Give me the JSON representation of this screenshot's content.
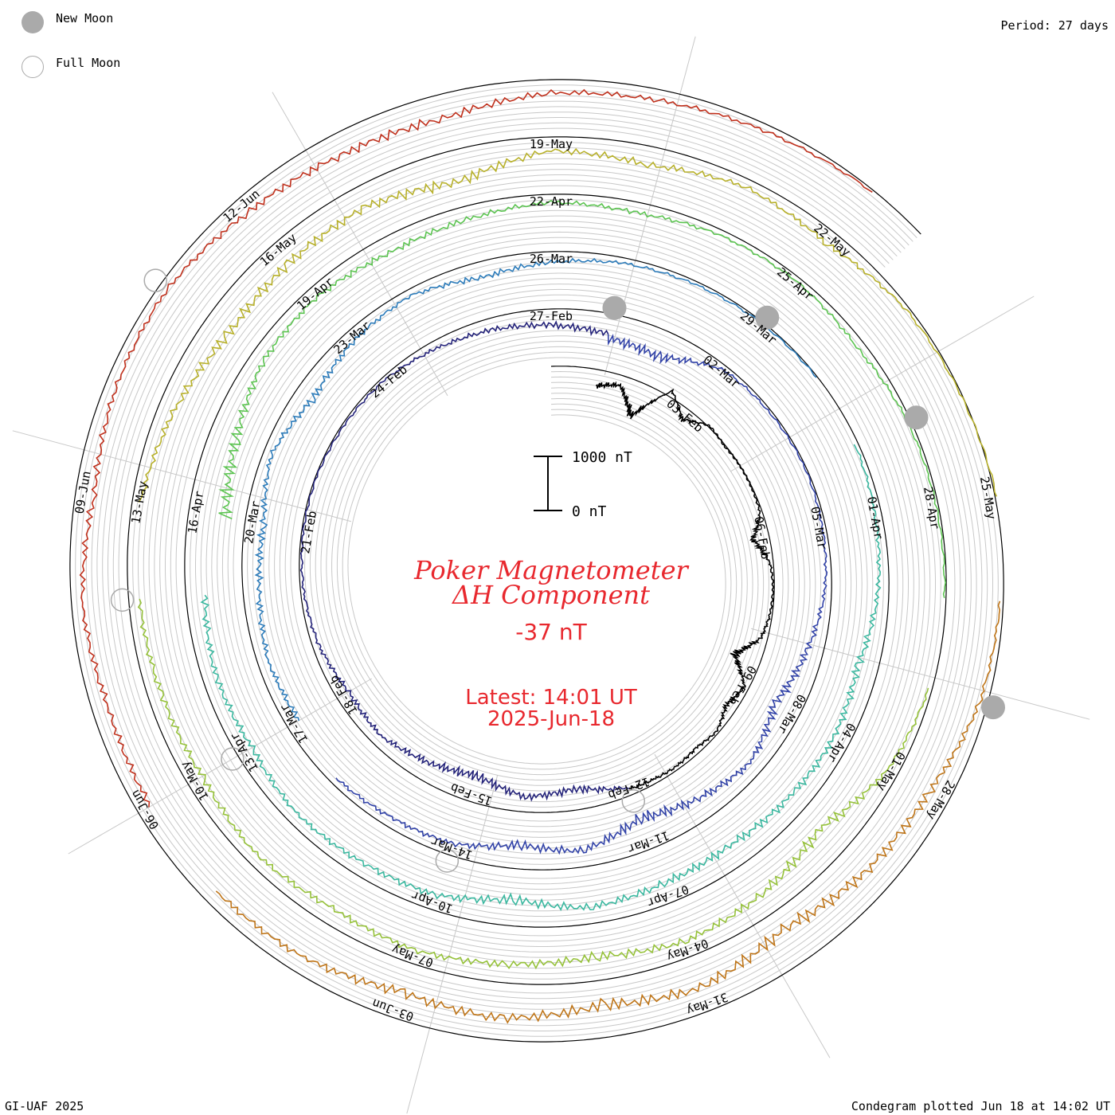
{
  "header": {
    "period_label": "Period: 27 days"
  },
  "legend": {
    "new_moon_label": "New Moon",
    "full_moon_label": "Full Moon",
    "new_moon_color": "#aaaaaa",
    "full_moon_color": "#aaaaaa"
  },
  "footer": {
    "credit": "GI-UAF 2025",
    "plotted": "Condegram plotted Jun 18 at 14:02 UT"
  },
  "chart_data": {
    "type": "line",
    "title": "Poker Magnetometer",
    "subtitle": "ΔH Component",
    "current_value": "-37 nT",
    "latest_line1": "Latest: 14:01 UT",
    "latest_line2": "2025-Jun-18",
    "title_color": "#e8282e",
    "scale_bar": {
      "top_label": "1000 nT",
      "bottom_label": "0 nT",
      "top_value": 1000,
      "bottom_value": 0
    },
    "period_days": 27,
    "start_date": "2025-01-31",
    "end_date": "2025-06-18",
    "y_unit": "nT",
    "grid": true,
    "date_ticks": [
      {
        "label": "03-Feb",
        "date": "2025-02-03"
      },
      {
        "label": "06-Feb",
        "date": "2025-02-06"
      },
      {
        "label": "09-Feb",
        "date": "2025-02-09"
      },
      {
        "label": "12-Feb",
        "date": "2025-02-12"
      },
      {
        "label": "15-Feb",
        "date": "2025-02-15"
      },
      {
        "label": "18-Feb",
        "date": "2025-02-18"
      },
      {
        "label": "21-Feb",
        "date": "2025-02-21"
      },
      {
        "label": "24-Feb",
        "date": "2025-02-24"
      },
      {
        "label": "27-Feb",
        "date": "2025-02-27"
      },
      {
        "label": "02-Mar",
        "date": "2025-03-02"
      },
      {
        "label": "05-Mar",
        "date": "2025-03-05"
      },
      {
        "label": "08-Mar",
        "date": "2025-03-08"
      },
      {
        "label": "11-Mar",
        "date": "2025-03-11"
      },
      {
        "label": "14-Mar",
        "date": "2025-03-14"
      },
      {
        "label": "17-Mar",
        "date": "2025-03-17"
      },
      {
        "label": "20-Mar",
        "date": "2025-03-20"
      },
      {
        "label": "23-Mar",
        "date": "2025-03-23"
      },
      {
        "label": "26-Mar",
        "date": "2025-03-26"
      },
      {
        "label": "29-Mar",
        "date": "2025-03-29"
      },
      {
        "label": "01-Apr",
        "date": "2025-04-01"
      },
      {
        "label": "04-Apr",
        "date": "2025-04-04"
      },
      {
        "label": "07-Apr",
        "date": "2025-04-07"
      },
      {
        "label": "10-Apr",
        "date": "2025-04-10"
      },
      {
        "label": "13-Apr",
        "date": "2025-04-13"
      },
      {
        "label": "16-Apr",
        "date": "2025-04-16"
      },
      {
        "label": "19-Apr",
        "date": "2025-04-19"
      },
      {
        "label": "22-Apr",
        "date": "2025-04-22"
      },
      {
        "label": "25-Apr",
        "date": "2025-04-25"
      },
      {
        "label": "28-Apr",
        "date": "2025-04-28"
      },
      {
        "label": "01-May",
        "date": "2025-05-01"
      },
      {
        "label": "04-May",
        "date": "2025-05-04"
      },
      {
        "label": "07-May",
        "date": "2025-05-07"
      },
      {
        "label": "10-May",
        "date": "2025-05-10"
      },
      {
        "label": "13-May",
        "date": "2025-05-13"
      },
      {
        "label": "16-May",
        "date": "2025-05-16"
      },
      {
        "label": "19-May",
        "date": "2025-05-19"
      },
      {
        "label": "22-May",
        "date": "2025-05-22"
      },
      {
        "label": "25-May",
        "date": "2025-05-25"
      },
      {
        "label": "28-May",
        "date": "2025-05-28"
      },
      {
        "label": "31-May",
        "date": "2025-05-31"
      },
      {
        "label": "03-Jun",
        "date": "2025-06-03"
      },
      {
        "label": "06-Jun",
        "date": "2025-06-06"
      },
      {
        "label": "09-Jun",
        "date": "2025-06-09"
      },
      {
        "label": "12-Jun",
        "date": "2025-06-12"
      }
    ],
    "new_moons": [
      "2025-02-28",
      "2025-03-29",
      "2025-04-27",
      "2025-05-27"
    ],
    "full_moons": [
      "2025-02-12",
      "2025-03-14",
      "2025-04-13",
      "2025-05-12",
      "2025-06-11"
    ],
    "series": [
      {
        "color": "#000000",
        "x": [
          "2025-02-01",
          "2025-02-01 12:00",
          "2025-02-02",
          "2025-02-02 12:00",
          "2025-02-03",
          "2025-02-03 12:00",
          "2025-02-04",
          "2025-02-04 12:00",
          "2025-02-05",
          "2025-02-05 12:00",
          "2025-02-06",
          "2025-02-06 12:00",
          "2025-02-07",
          "2025-02-07 12:00",
          "2025-02-08",
          "2025-02-08 12:00",
          "2025-02-09",
          "2025-02-09 12:00",
          "2025-02-10",
          "2025-02-10 12:00",
          "2025-02-11",
          "2025-02-11 12:00",
          "2025-02-12"
        ],
        "y": [
          -300,
          -180,
          -650,
          120,
          -220,
          30,
          -20,
          0,
          -10,
          -40,
          -300,
          -60,
          -20,
          -40,
          -120,
          -500,
          -80,
          -200,
          -40,
          -100,
          -60,
          -80,
          -120
        ]
      },
      {
        "color": "#24237a",
        "x": [
          "2025-02-12",
          "2025-02-13",
          "2025-02-14",
          "2025-02-15",
          "2025-02-16",
          "2025-02-17",
          "2025-02-18",
          "2025-02-19",
          "2025-02-20",
          "2025-02-21",
          "2025-02-22",
          "2025-02-23",
          "2025-02-24",
          "2025-02-25",
          "2025-02-26",
          "2025-02-27",
          "2025-02-28"
        ],
        "y": [
          -150,
          -400,
          -280,
          -500,
          -350,
          -200,
          -250,
          -120,
          -60,
          -30,
          -20,
          -40,
          -60,
          -150,
          -220,
          -300,
          -380
        ]
      },
      {
        "color": "#3243a8",
        "x": [
          "2025-02-28",
          "2025-03-01",
          "2025-03-02",
          "2025-03-03",
          "2025-03-04",
          "2025-03-05",
          "2025-03-06",
          "2025-03-07",
          "2025-03-08",
          "2025-03-09",
          "2025-03-10",
          "2025-03-11",
          "2025-03-12",
          "2025-03-13",
          "2025-03-14",
          "2025-03-15",
          "2025-03-16"
        ],
        "y": [
          -450,
          -500,
          -80,
          -40,
          -20,
          -60,
          -120,
          -300,
          -500,
          -250,
          -400,
          -600,
          -300,
          -450,
          -220,
          -180,
          -120
        ]
      },
      {
        "color": "#2b7bba",
        "x": [
          "2025-03-17",
          "2025-03-18",
          "2025-03-19",
          "2025-03-20",
          "2025-03-21",
          "2025-03-22",
          "2025-03-23",
          "2025-03-24",
          "2025-03-25",
          "2025-03-26",
          "2025-03-27",
          "2025-03-28",
          "2025-03-29",
          "2025-03-30"
        ],
        "y": [
          -250,
          -200,
          -300,
          -350,
          -150,
          -350,
          -200,
          -120,
          -300,
          -200,
          -100,
          -60,
          -30,
          -20
        ]
      },
      {
        "color": "#3bb8a0",
        "x": [
          "2025-03-31",
          "2025-04-01",
          "2025-04-02",
          "2025-04-03",
          "2025-04-04",
          "2025-04-05",
          "2025-04-06",
          "2025-04-07",
          "2025-04-08",
          "2025-04-09",
          "2025-04-10",
          "2025-04-11",
          "2025-04-12",
          "2025-04-13",
          "2025-04-14",
          "2025-04-15"
        ],
        "y": [
          -60,
          -120,
          -200,
          -380,
          -300,
          -350,
          -420,
          -380,
          -300,
          -500,
          -280,
          -250,
          -200,
          -300,
          -250,
          -350
        ]
      },
      {
        "color": "#5cc451",
        "x": [
          "2025-04-16",
          "2025-04-17",
          "2025-04-18",
          "2025-04-19",
          "2025-04-20",
          "2025-04-21",
          "2025-04-22",
          "2025-04-23",
          "2025-04-24",
          "2025-04-25",
          "2025-04-26",
          "2025-04-27",
          "2025-04-28",
          "2025-04-29"
        ],
        "y": [
          -700,
          -500,
          -250,
          -200,
          -300,
          -250,
          -150,
          -200,
          -100,
          -80,
          -150,
          -60,
          -40,
          -30
        ]
      },
      {
        "color": "#96c23a",
        "x": [
          "2025-04-30",
          "2025-05-01",
          "2025-05-02",
          "2025-05-03",
          "2025-05-04",
          "2025-05-05",
          "2025-05-06",
          "2025-05-07",
          "2025-05-08",
          "2025-05-09",
          "2025-05-10",
          "2025-05-11",
          "2025-05-12"
        ],
        "y": [
          -60,
          -200,
          -600,
          -400,
          -300,
          -450,
          -350,
          -250,
          -300,
          -200,
          -300,
          -250,
          -200
        ]
      },
      {
        "color": "#b8b12b",
        "x": [
          "2025-05-13",
          "2025-05-14",
          "2025-05-15",
          "2025-05-16",
          "2025-05-17",
          "2025-05-18",
          "2025-05-19",
          "2025-05-20",
          "2025-05-21",
          "2025-05-22",
          "2025-05-23",
          "2025-05-24",
          "2025-05-25"
        ],
        "y": [
          -150,
          -300,
          -500,
          -450,
          -400,
          -600,
          -250,
          -350,
          -150,
          -250,
          -60,
          -20,
          30
        ]
      },
      {
        "color": "#bf7518",
        "x": [
          "2025-05-26",
          "2025-05-27",
          "2025-05-28",
          "2025-05-29",
          "2025-05-30",
          "2025-05-31",
          "2025-06-01",
          "2025-06-02",
          "2025-06-03",
          "2025-06-04",
          "2025-06-05"
        ],
        "y": [
          -60,
          -150,
          -400,
          -500,
          -700,
          -450,
          -600,
          -400,
          -500,
          -300,
          -250
        ]
      },
      {
        "color": "#c0301c",
        "x": [
          "2025-06-06",
          "2025-06-07",
          "2025-06-08",
          "2025-06-09",
          "2025-06-10",
          "2025-06-11",
          "2025-06-12",
          "2025-06-13",
          "2025-06-14",
          "2025-06-15",
          "2025-06-16",
          "2025-06-17",
          "2025-06-18"
        ],
        "y": [
          -250,
          -300,
          -200,
          -350,
          -200,
          -150,
          -300,
          -400,
          -450,
          -250,
          -200,
          -120,
          -37
        ]
      }
    ]
  }
}
